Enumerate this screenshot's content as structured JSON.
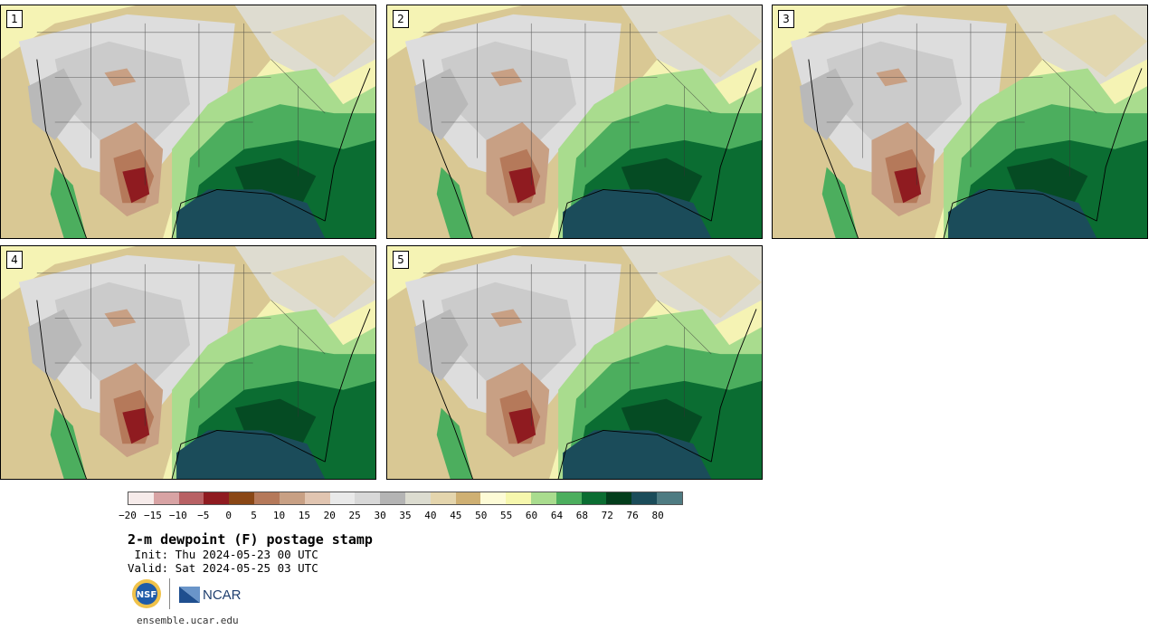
{
  "panels": [
    {
      "number": "1"
    },
    {
      "number": "2"
    },
    {
      "number": "3"
    },
    {
      "number": "4"
    },
    {
      "number": "5"
    }
  ],
  "colorbar": {
    "colors": [
      "#f6ebea",
      "#d8a3a4",
      "#b86164",
      "#8f1b20",
      "#8a4715",
      "#b5795a",
      "#c8a084",
      "#e1c5b1",
      "#e9e9e9",
      "#d8d8d8",
      "#b4b4b4",
      "#dcdcd0",
      "#e4d5ad",
      "#cfb073",
      "#fdfbd6",
      "#f6f7ad",
      "#a9dc8e",
      "#4cae5e",
      "#0b6d32",
      "#033d1c",
      "#1b4c5a",
      "#4e7b82"
    ],
    "tick_labels": [
      "−20",
      "−15",
      "−10",
      "−5",
      "0",
      "5",
      "10",
      "15",
      "20",
      "25",
      "30",
      "35",
      "40",
      "45",
      "50",
      "55",
      "60",
      "64",
      "68",
      "72",
      "76",
      "80"
    ]
  },
  "title": "2-m dewpoint (F) postage stamp",
  "init": " Init: Thu 2024-05-23 00 UTC",
  "valid": "Valid: Sat 2024-05-25 03 UTC",
  "logos": {
    "nsf": "NSF",
    "ncar": "NCAR"
  },
  "site": "ensemble.ucar.edu"
}
